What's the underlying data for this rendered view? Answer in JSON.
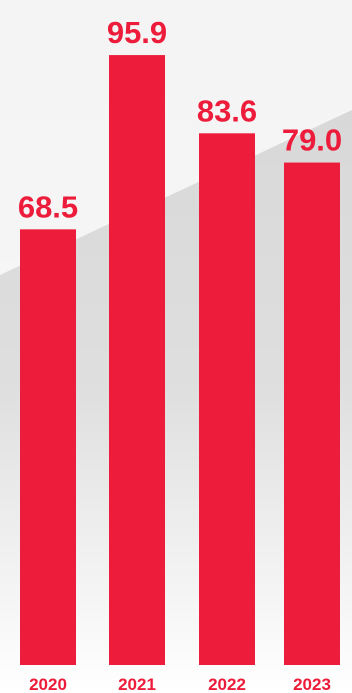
{
  "chart_data": {
    "type": "bar",
    "title": "",
    "xlabel": "",
    "ylabel": "",
    "categories": [
      "2020",
      "2021",
      "2022",
      "2023"
    ],
    "values": [
      68.5,
      95.9,
      83.6,
      79.0
    ],
    "value_labels": [
      "68.5",
      "95.9",
      "83.6",
      "79.0"
    ],
    "ylim": [
      0,
      100
    ],
    "grid": false,
    "legend": "none",
    "colors": {
      "bar": "#ED1C3A",
      "value_label": "#ED1C3A",
      "category_label": "#ED1C3A",
      "background_light": "#FFFFFF",
      "background_dark": "#CFCFCF"
    }
  }
}
